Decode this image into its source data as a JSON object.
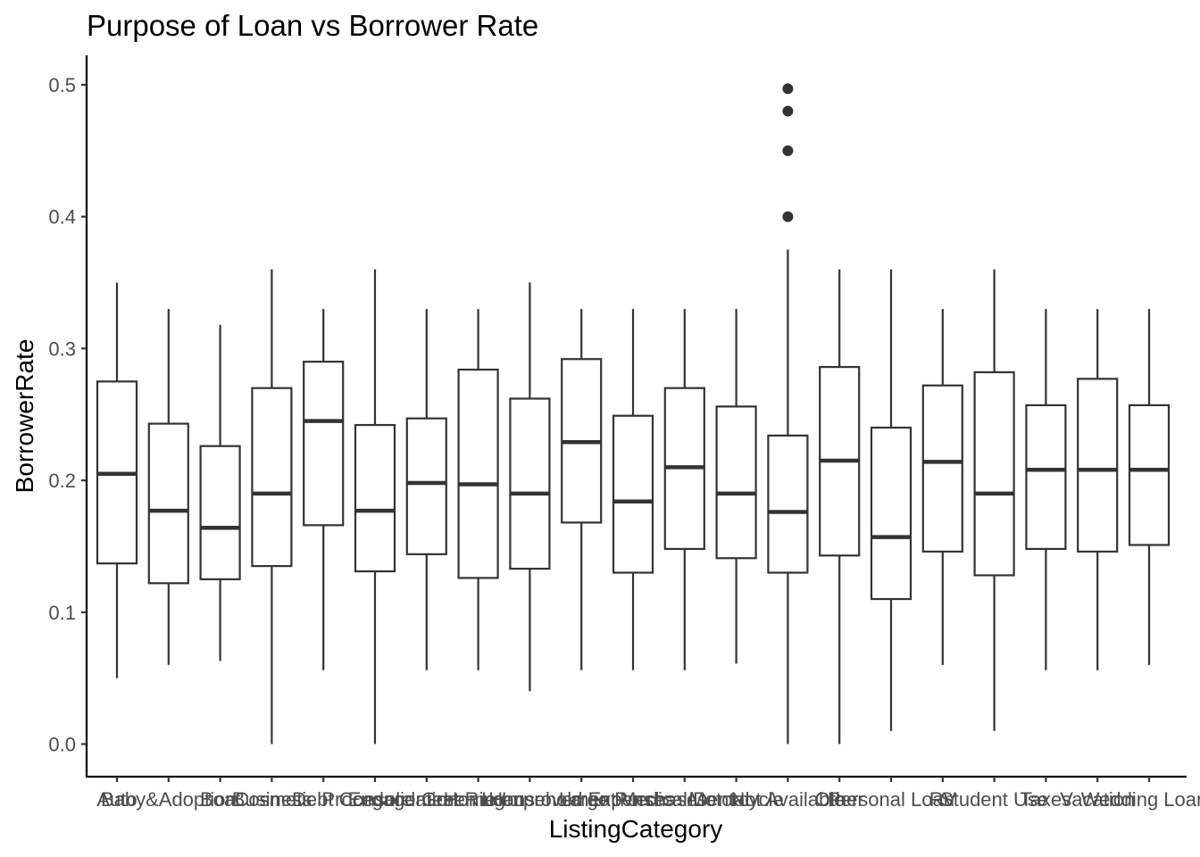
{
  "chart_data": {
    "type": "boxplot",
    "title": "Purpose of Loan vs Borrower Rate",
    "xlabel": "ListingCategory",
    "ylabel": "BorrowerRate",
    "ylim": [
      -0.025,
      0.525
    ],
    "yticks": [
      0.0,
      0.1,
      0.2,
      0.3,
      0.4,
      0.5
    ],
    "ytick_labels": [
      "0.0",
      "0.1",
      "0.2",
      "0.3",
      "0.4",
      "0.5"
    ],
    "grid": false,
    "legend": "none",
    "colors": {
      "box_stroke": "#333333",
      "box_fill": "#ffffff",
      "axis": "#000000",
      "tick_text": "#4d4d4d"
    },
    "categories": [
      {
        "label": "Auto",
        "lower": 0.05,
        "q1": 0.137,
        "median": 0.205,
        "q3": 0.275,
        "upper": 0.35,
        "outliers": []
      },
      {
        "label": "Baby&Adoption",
        "lower": 0.06,
        "q1": 0.122,
        "median": 0.177,
        "q3": 0.243,
        "upper": 0.33,
        "outliers": []
      },
      {
        "label": "Boat",
        "lower": 0.063,
        "q1": 0.125,
        "median": 0.164,
        "q3": 0.226,
        "upper": 0.318,
        "outliers": []
      },
      {
        "label": "Business",
        "lower": 0.0,
        "q1": 0.135,
        "median": 0.19,
        "q3": 0.27,
        "upper": 0.36,
        "outliers": []
      },
      {
        "label": "Cosmetic Procedure",
        "lower": 0.056,
        "q1": 0.166,
        "median": 0.245,
        "q3": 0.29,
        "upper": 0.33,
        "outliers": []
      },
      {
        "label": "Debt Consolidation",
        "lower": 0.0,
        "q1": 0.131,
        "median": 0.177,
        "q3": 0.242,
        "upper": 0.36,
        "outliers": []
      },
      {
        "label": "Engagement Ring",
        "lower": 0.056,
        "q1": 0.144,
        "median": 0.198,
        "q3": 0.247,
        "upper": 0.33,
        "outliers": []
      },
      {
        "label": "Green Loans",
        "lower": 0.056,
        "q1": 0.126,
        "median": 0.197,
        "q3": 0.284,
        "upper": 0.33,
        "outliers": []
      },
      {
        "label": "Home Improvement",
        "lower": 0.04,
        "q1": 0.133,
        "median": 0.19,
        "q3": 0.262,
        "upper": 0.35,
        "outliers": []
      },
      {
        "label": "Household Expenses",
        "lower": 0.056,
        "q1": 0.168,
        "median": 0.229,
        "q3": 0.292,
        "upper": 0.33,
        "outliers": []
      },
      {
        "label": "Large Purchases",
        "lower": 0.056,
        "q1": 0.13,
        "median": 0.184,
        "q3": 0.249,
        "upper": 0.33,
        "outliers": []
      },
      {
        "label": "Medical/Dental",
        "lower": 0.056,
        "q1": 0.148,
        "median": 0.21,
        "q3": 0.27,
        "upper": 0.33,
        "outliers": []
      },
      {
        "label": "Motorcycle",
        "lower": 0.061,
        "q1": 0.141,
        "median": 0.19,
        "q3": 0.256,
        "upper": 0.33,
        "outliers": []
      },
      {
        "label": "Not Available",
        "lower": 0.0,
        "q1": 0.13,
        "median": 0.176,
        "q3": 0.234,
        "upper": 0.375,
        "outliers": [
          0.4,
          0.45,
          0.48,
          0.497
        ]
      },
      {
        "label": "Other",
        "lower": 0.0,
        "q1": 0.143,
        "median": 0.215,
        "q3": 0.286,
        "upper": 0.36,
        "outliers": []
      },
      {
        "label": "Personal Loan",
        "lower": 0.01,
        "q1": 0.11,
        "median": 0.157,
        "q3": 0.24,
        "upper": 0.36,
        "outliers": []
      },
      {
        "label": "RV",
        "lower": 0.06,
        "q1": 0.146,
        "median": 0.214,
        "q3": 0.272,
        "upper": 0.33,
        "outliers": []
      },
      {
        "label": "Student Use",
        "lower": 0.01,
        "q1": 0.128,
        "median": 0.19,
        "q3": 0.282,
        "upper": 0.36,
        "outliers": []
      },
      {
        "label": "Taxes",
        "lower": 0.056,
        "q1": 0.148,
        "median": 0.208,
        "q3": 0.257,
        "upper": 0.33,
        "outliers": []
      },
      {
        "label": "Vacation",
        "lower": 0.056,
        "q1": 0.146,
        "median": 0.208,
        "q3": 0.277,
        "upper": 0.33,
        "outliers": []
      },
      {
        "label": "Wedding Loans",
        "lower": 0.06,
        "q1": 0.151,
        "median": 0.208,
        "q3": 0.257,
        "upper": 0.33,
        "outliers": []
      }
    ]
  }
}
